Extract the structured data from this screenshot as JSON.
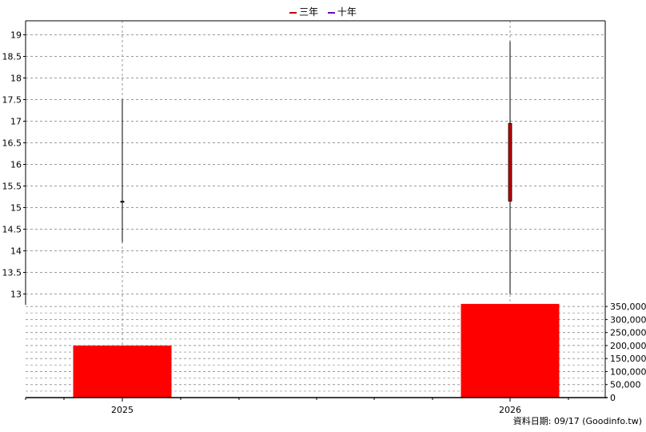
{
  "legend": [
    {
      "label": "三年",
      "color": "#c00000"
    },
    {
      "label": "十年",
      "color": "#6a0dad"
    }
  ],
  "source_note": "資料日期: 09/17  (Goodinfo.tw)",
  "chart_data": [
    {
      "type": "candlestick",
      "categories": [
        "2025",
        "2026"
      ],
      "ohlc": [
        {
          "x": "2025",
          "open": 15.15,
          "high": 17.5,
          "low": 14.2,
          "close": 15.15
        },
        {
          "x": "2026",
          "open": 15.15,
          "high": 18.85,
          "low": 13.0,
          "close": 16.95
        }
      ],
      "ylim": [
        12.75,
        19.25
      ],
      "yticks": [
        "13",
        "13.5",
        "14",
        "14.5",
        "15",
        "15.5",
        "16",
        "16.5",
        "17",
        "17.5",
        "18",
        "18.5",
        "19"
      ],
      "up_color": "#c00000",
      "grid": true
    },
    {
      "type": "bar",
      "categories": [
        "2025",
        "2026"
      ],
      "values": [
        200000,
        360000
      ],
      "ylim": [
        0,
        375000
      ],
      "yticks": [
        "0",
        "50,000",
        "100,000",
        "150,000",
        "200,000",
        "250,000",
        "300,000",
        "350,000"
      ],
      "color": "#ff0000",
      "grid": true
    }
  ]
}
